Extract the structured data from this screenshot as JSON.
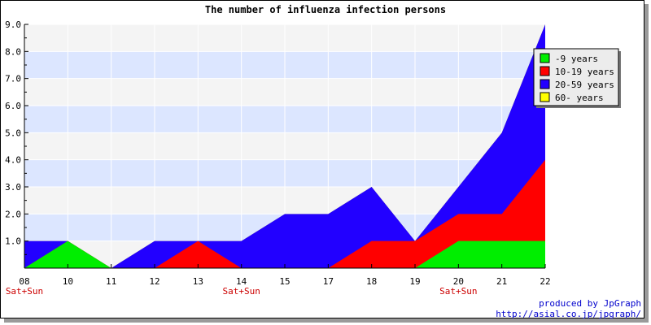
{
  "chart_data": {
    "type": "area",
    "title": "The number of influenza infection persons",
    "xlabel": "",
    "ylabel": "",
    "x": [
      "08",
      "10",
      "11",
      "12",
      "13",
      "14",
      "15",
      "17",
      "18",
      "19",
      "20",
      "21",
      "22"
    ],
    "x_sublabels": [
      "Sat+Sun",
      "",
      "",
      "",
      "",
      "Sat+Sun",
      "",
      "",
      "",
      "",
      "Sat+Sun",
      "",
      ""
    ],
    "y_ticks": [
      "1.0",
      "2.0",
      "3.0",
      "4.0",
      "5.0",
      "6.0",
      "7.0",
      "8.0",
      "9.0"
    ],
    "ylim": [
      0,
      9
    ],
    "stacked": true,
    "series": [
      {
        "name": "-9 years",
        "color": "#00ee00",
        "values": [
          0,
          1,
          0,
          0,
          0,
          0,
          0,
          0,
          0,
          0,
          1,
          1,
          1
        ]
      },
      {
        "name": "10-19 years",
        "color": "#ff0000",
        "values": [
          0,
          0,
          0,
          0,
          1,
          0,
          0,
          0,
          1,
          1,
          1,
          1,
          3
        ]
      },
      {
        "name": "20-59 years",
        "color": "#2200ff",
        "values": [
          1,
          0,
          0,
          1,
          0,
          1,
          2,
          2,
          2,
          0,
          1,
          3,
          5
        ]
      },
      {
        "name": "60- years",
        "color": "#ffff00",
        "values": [
          0,
          0,
          0,
          0,
          0,
          0,
          0,
          0,
          0,
          0,
          0,
          0,
          0
        ]
      }
    ],
    "legend_position": "top-right",
    "grid": true,
    "band_colors": [
      "#f4f4f4",
      "#dce6ff"
    ]
  },
  "credit": {
    "line1": "produced by JpGraph",
    "line2": "http://asial.co.jp/jpgraph/"
  }
}
